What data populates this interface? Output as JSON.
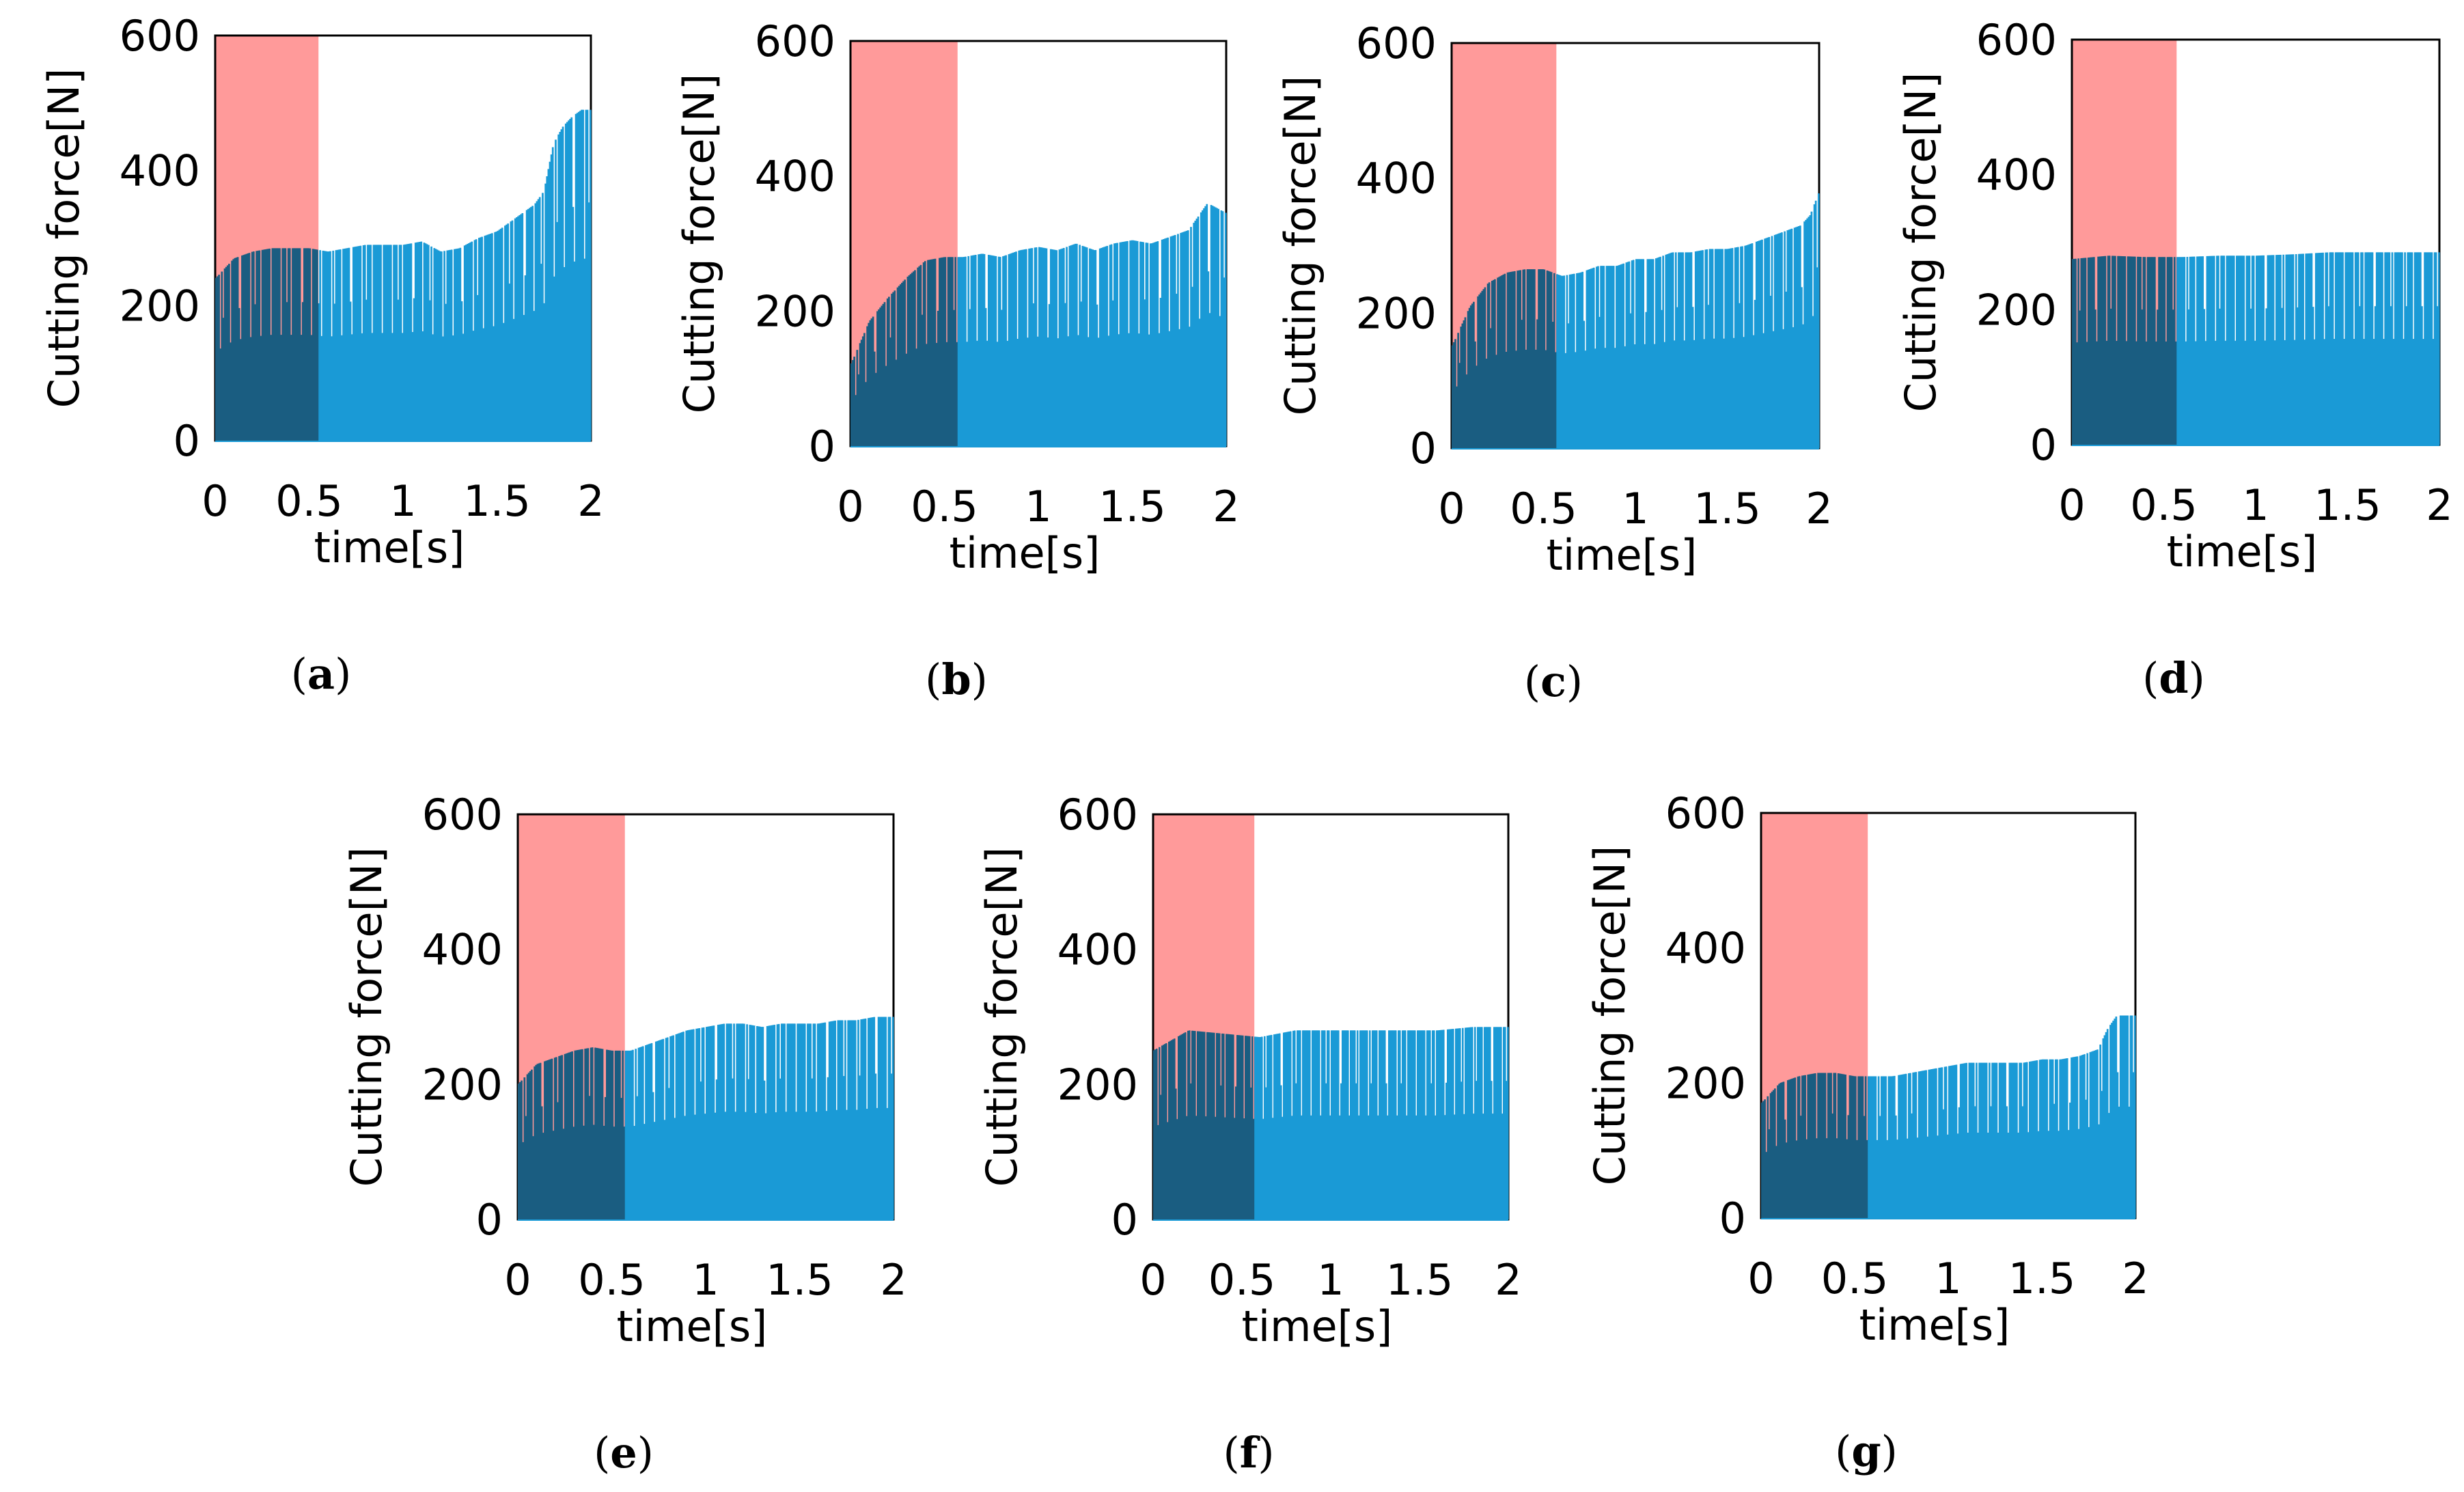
{
  "figure": {
    "panels": [
      {
        "id": "a",
        "caption": "a"
      },
      {
        "id": "b",
        "caption": "b"
      },
      {
        "id": "c",
        "caption": "c"
      },
      {
        "id": "d",
        "caption": "d"
      },
      {
        "id": "e",
        "caption": "e"
      },
      {
        "id": "f",
        "caption": "f"
      },
      {
        "id": "g",
        "caption": "g"
      }
    ]
  },
  "chart_data": [
    {
      "panel": "a",
      "type": "area",
      "title": "",
      "xlabel": "time[s]",
      "ylabel": "Cutting force[N]",
      "xlim": [
        0,
        2
      ],
      "ylim": [
        0,
        600
      ],
      "xticks": [
        "0",
        "0.5",
        "1",
        "1.5",
        "2"
      ],
      "yticks": [
        "0",
        "200",
        "400",
        "600"
      ],
      "highlight_region": {
        "x_start": 0,
        "x_end": 0.55,
        "color": "#ff8c8c"
      },
      "series": [
        {
          "name": "Cutting force",
          "color": "#1a9ad6",
          "x": [
            0,
            0.1,
            0.2,
            0.3,
            0.4,
            0.5,
            0.6,
            0.7,
            0.8,
            0.9,
            1.0,
            1.1,
            1.2,
            1.3,
            1.4,
            1.5,
            1.6,
            1.7,
            1.75,
            1.8,
            1.85,
            1.9,
            1.95,
            2.0
          ],
          "y": [
            240,
            270,
            280,
            285,
            285,
            285,
            280,
            285,
            290,
            290,
            290,
            295,
            280,
            285,
            300,
            310,
            330,
            350,
            370,
            440,
            465,
            480,
            490,
            490
          ]
        }
      ]
    },
    {
      "panel": "b",
      "type": "area",
      "title": "",
      "xlabel": "time[s]",
      "ylabel": "Cutting force[N]",
      "xlim": [
        0,
        2
      ],
      "ylim": [
        0,
        600
      ],
      "xticks": [
        "0",
        "0.5",
        "1",
        "1.5",
        "2"
      ],
      "yticks": [
        "0",
        "200",
        "400",
        "600"
      ],
      "highlight_region": {
        "x_start": 0,
        "x_end": 0.57,
        "color": "#ff8c8c"
      },
      "series": [
        {
          "name": "Cutting force",
          "color": "#1a9ad6",
          "x": [
            0,
            0.1,
            0.2,
            0.3,
            0.4,
            0.5,
            0.6,
            0.7,
            0.8,
            0.9,
            1.0,
            1.1,
            1.2,
            1.3,
            1.4,
            1.5,
            1.6,
            1.7,
            1.8,
            1.9,
            2.0
          ],
          "y": [
            120,
            185,
            220,
            250,
            275,
            280,
            280,
            285,
            280,
            290,
            295,
            290,
            300,
            290,
            300,
            305,
            300,
            310,
            320,
            360,
            345
          ]
        }
      ]
    },
    {
      "panel": "c",
      "type": "area",
      "title": "",
      "xlabel": "time[s]",
      "ylabel": "Cutting force[N]",
      "xlim": [
        0,
        2
      ],
      "ylim": [
        0,
        600
      ],
      "xticks": [
        "0",
        "0.5",
        "1",
        "1.5",
        "2"
      ],
      "yticks": [
        "0",
        "200",
        "400",
        "600"
      ],
      "highlight_region": {
        "x_start": 0,
        "x_end": 0.57,
        "color": "#ff8c8c"
      },
      "series": [
        {
          "name": "Cutting force",
          "color": "#1a9ad6",
          "x": [
            0,
            0.1,
            0.2,
            0.3,
            0.4,
            0.5,
            0.6,
            0.7,
            0.8,
            0.9,
            1.0,
            1.1,
            1.2,
            1.3,
            1.4,
            1.5,
            1.6,
            1.7,
            1.8,
            1.9,
            1.95,
            2.0
          ],
          "y": [
            150,
            210,
            245,
            260,
            265,
            265,
            255,
            260,
            270,
            270,
            280,
            280,
            290,
            290,
            295,
            295,
            300,
            310,
            320,
            330,
            345,
            380
          ]
        }
      ]
    },
    {
      "panel": "d",
      "type": "area",
      "title": "",
      "xlabel": "time[s]",
      "ylabel": "Cutting force[N]",
      "xlim": [
        0,
        2
      ],
      "ylim": [
        0,
        600
      ],
      "xticks": [
        "0",
        "0.5",
        "1",
        "1.5",
        "2"
      ],
      "yticks": [
        "0",
        "200",
        "400",
        "600"
      ],
      "highlight_region": {
        "x_start": 0,
        "x_end": 0.57,
        "color": "#ff8c8c"
      },
      "series": [
        {
          "name": "Cutting force",
          "color": "#1a9ad6",
          "x": [
            0,
            0.2,
            0.4,
            0.6,
            0.8,
            1.0,
            1.2,
            1.4,
            1.6,
            1.8,
            2.0
          ],
          "y": [
            275,
            280,
            278,
            278,
            280,
            280,
            282,
            285,
            285,
            285,
            285
          ]
        }
      ]
    },
    {
      "panel": "e",
      "type": "area",
      "title": "",
      "xlabel": "time[s]",
      "ylabel": "Cutting force[N]",
      "xlim": [
        0,
        2
      ],
      "ylim": [
        0,
        600
      ],
      "xticks": [
        "0",
        "0.5",
        "1",
        "1.5",
        "2"
      ],
      "yticks": [
        "0",
        "200",
        "400",
        "600"
      ],
      "highlight_region": {
        "x_start": 0,
        "x_end": 0.57,
        "color": "#ff8c8c"
      },
      "series": [
        {
          "name": "Cutting force",
          "color": "#1a9ad6",
          "x": [
            0,
            0.1,
            0.2,
            0.3,
            0.4,
            0.5,
            0.6,
            0.7,
            0.8,
            0.9,
            1.0,
            1.1,
            1.2,
            1.3,
            1.4,
            1.5,
            1.6,
            1.7,
            1.8,
            1.9,
            2.0
          ],
          "y": [
            200,
            230,
            240,
            250,
            255,
            250,
            250,
            260,
            270,
            280,
            285,
            290,
            290,
            285,
            290,
            290,
            290,
            295,
            295,
            300,
            300
          ]
        }
      ]
    },
    {
      "panel": "f",
      "type": "area",
      "title": "",
      "xlabel": "time[s]",
      "ylabel": "Cutting force[N]",
      "xlim": [
        0,
        2
      ],
      "ylim": [
        0,
        600
      ],
      "xticks": [
        "0",
        "0.5",
        "1",
        "1.5",
        "2"
      ],
      "yticks": [
        "0",
        "200",
        "400",
        "600"
      ],
      "highlight_region": {
        "x_start": 0,
        "x_end": 0.57,
        "color": "#ff8c8c"
      },
      "series": [
        {
          "name": "Cutting force",
          "color": "#1a9ad6",
          "x": [
            0,
            0.2,
            0.4,
            0.6,
            0.8,
            1.0,
            1.2,
            1.4,
            1.6,
            1.8,
            2.0
          ],
          "y": [
            250,
            280,
            275,
            270,
            280,
            280,
            280,
            280,
            280,
            285,
            285
          ]
        }
      ]
    },
    {
      "panel": "g",
      "type": "area",
      "title": "",
      "xlabel": "time[s]",
      "ylabel": "Cutting force[N]",
      "xlim": [
        0,
        2
      ],
      "ylim": [
        0,
        600
      ],
      "xticks": [
        "0",
        "0.5",
        "1",
        "1.5",
        "2"
      ],
      "yticks": [
        "0",
        "200",
        "400",
        "600"
      ],
      "highlight_region": {
        "x_start": 0,
        "x_end": 0.57,
        "color": "#ff8c8c"
      },
      "series": [
        {
          "name": "Cutting force",
          "color": "#1a9ad6",
          "x": [
            0,
            0.1,
            0.2,
            0.3,
            0.4,
            0.5,
            0.6,
            0.7,
            0.8,
            0.9,
            1.0,
            1.1,
            1.2,
            1.3,
            1.4,
            1.5,
            1.6,
            1.7,
            1.8,
            1.85,
            1.9,
            1.95,
            2.0
          ],
          "y": [
            170,
            200,
            210,
            215,
            215,
            210,
            210,
            210,
            215,
            220,
            225,
            230,
            230,
            230,
            230,
            235,
            235,
            240,
            250,
            280,
            300,
            300,
            300
          ]
        }
      ]
    }
  ]
}
